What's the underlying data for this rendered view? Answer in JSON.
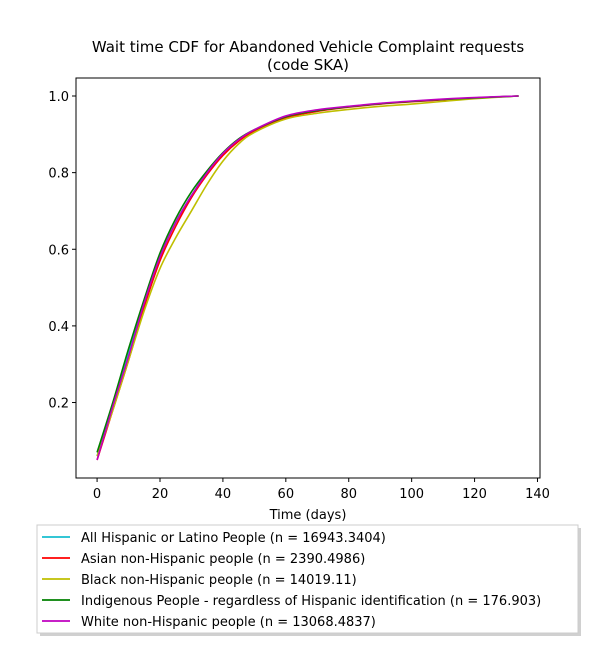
{
  "chart_data": {
    "type": "line",
    "title": "Wait time CDF for Abandoned Vehicle Complaint  requests",
    "subtitle": "(code SKA)",
    "xlabel": "Time (days)",
    "ylabel": "",
    "xlim": [
      -6.7,
      140.8
    ],
    "ylim": [
      0.003,
      1.047
    ],
    "x_ticks": [
      0,
      20,
      40,
      60,
      80,
      100,
      120,
      140
    ],
    "x_tick_labels": [
      "0",
      "20",
      "40",
      "60",
      "80",
      "100",
      "120",
      "140"
    ],
    "y_ticks": [
      0.2,
      0.4,
      0.6,
      0.8,
      1.0
    ],
    "y_tick_labels": [
      "0.2",
      "0.4",
      "0.6",
      "0.8",
      "1.0"
    ],
    "grid": false,
    "legend_position": "below-plot",
    "x": [
      0,
      5,
      10,
      15,
      20,
      25,
      30,
      35,
      40,
      45,
      50,
      60,
      70,
      80,
      90,
      100,
      110,
      120,
      134
    ],
    "series": [
      {
        "name": "All Hispanic or Latino People (n = 16943.3404)",
        "color": "#17becf",
        "values": [
          0.06,
          0.19,
          0.33,
          0.46,
          0.58,
          0.67,
          0.74,
          0.8,
          0.85,
          0.885,
          0.91,
          0.945,
          0.962,
          0.972,
          0.98,
          0.986,
          0.991,
          0.995,
          1.0
        ]
      },
      {
        "name": "Asian non-Hispanic people (n = 2390.4986)",
        "color": "#ff0000",
        "values": [
          0.05,
          0.18,
          0.31,
          0.45,
          0.57,
          0.66,
          0.735,
          0.795,
          0.845,
          0.882,
          0.908,
          0.943,
          0.96,
          0.971,
          0.979,
          0.985,
          0.99,
          0.995,
          1.0
        ]
      },
      {
        "name": "Black non-Hispanic people (n = 14019.11)",
        "color": "#bfbf00",
        "values": [
          0.06,
          0.18,
          0.31,
          0.44,
          0.55,
          0.63,
          0.7,
          0.77,
          0.83,
          0.875,
          0.905,
          0.94,
          0.955,
          0.965,
          0.973,
          0.979,
          0.986,
          0.993,
          1.0
        ]
      },
      {
        "name": "Indigenous People - regardless of Hispanic identification (n = 176.903)",
        "color": "#008000",
        "values": [
          0.07,
          0.2,
          0.34,
          0.47,
          0.59,
          0.68,
          0.75,
          0.805,
          0.852,
          0.888,
          0.912,
          0.946,
          0.962,
          0.972,
          0.98,
          0.986,
          0.991,
          0.995,
          1.0
        ]
      },
      {
        "name": "White non-Hispanic people (n = 13068.4837)",
        "color": "#bf00bf",
        "values": [
          0.05,
          0.19,
          0.32,
          0.46,
          0.58,
          0.67,
          0.74,
          0.8,
          0.85,
          0.886,
          0.912,
          0.948,
          0.964,
          0.973,
          0.981,
          0.987,
          0.992,
          0.996,
          1.0
        ]
      }
    ]
  }
}
